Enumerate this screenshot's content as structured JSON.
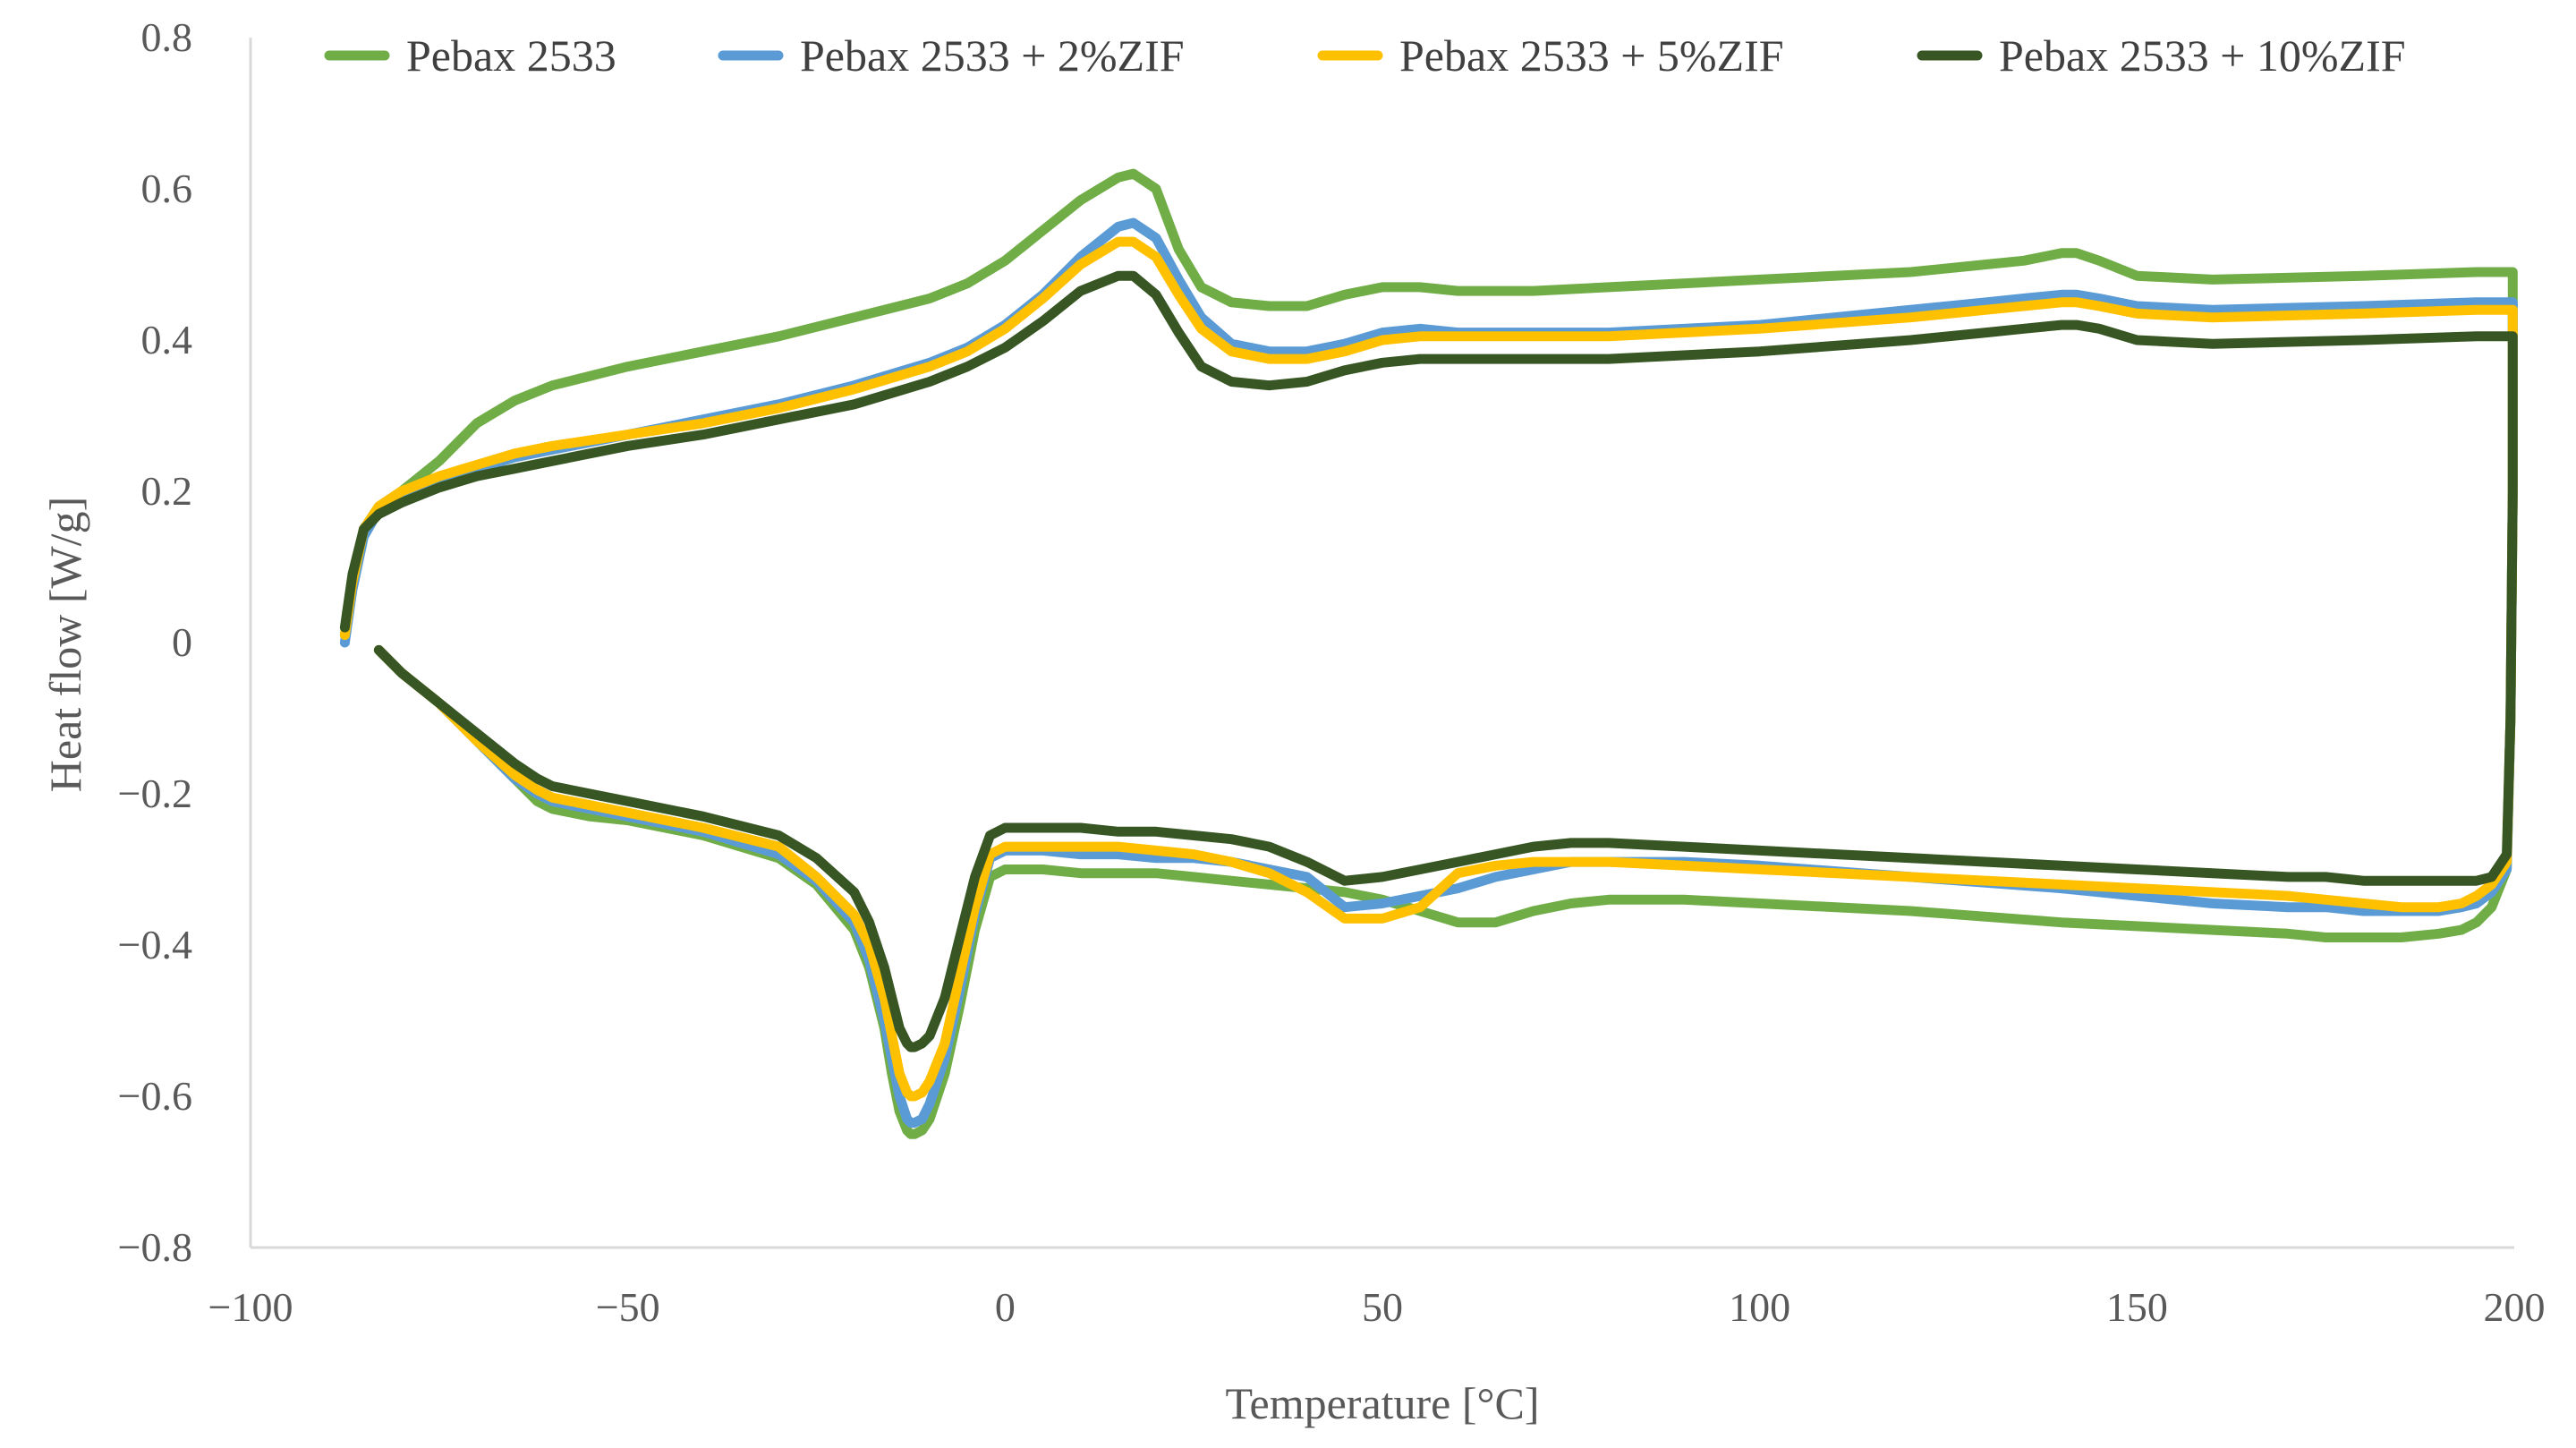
{
  "chart_data": {
    "type": "line",
    "title": "",
    "xlabel": "Temperature [°C]",
    "ylabel": "Heat flow [W/g]",
    "xlim": [
      -100,
      200
    ],
    "ylim": [
      -0.8,
      0.8
    ],
    "x_ticks": [
      -100,
      -50,
      0,
      50,
      100,
      150,
      200
    ],
    "x_tick_labels": [
      "−100",
      "−50",
      "0",
      "50",
      "100",
      "150",
      "200"
    ],
    "y_ticks": [
      0.8,
      0.6,
      0.4,
      0.2,
      0,
      -0.2,
      -0.4,
      -0.6,
      -0.8
    ],
    "y_tick_labels": [
      "0.8",
      "0.6",
      "0.4",
      "0.2",
      "0",
      "−0.2",
      "−0.4",
      "−0.6",
      "−0.8"
    ],
    "grid": false,
    "legend_position": "top",
    "series": [
      {
        "name": "Pebax 2533",
        "color": "#70AD47",
        "x": [
          -87.5,
          -86.5,
          -85,
          -83,
          -80,
          -75,
          -70,
          -65,
          -60,
          -50,
          -40,
          -30,
          -20,
          -10,
          -5,
          0,
          5,
          10,
          15,
          17,
          20,
          23,
          26,
          30,
          35,
          40,
          45,
          50,
          55,
          60,
          70,
          80,
          100,
          120,
          130,
          135,
          140,
          142,
          145,
          150,
          160,
          180,
          195,
          199.8,
          199.8,
          199.5,
          199,
          197,
          195,
          193,
          190,
          185,
          180,
          175,
          170,
          160,
          150,
          140,
          120,
          100,
          90,
          80,
          75,
          70,
          65,
          60,
          55,
          50,
          45,
          40,
          35,
          30,
          25,
          20,
          15,
          10,
          5,
          0,
          -2,
          -4,
          -6,
          -8,
          -10,
          -11,
          -12,
          -12.5,
          -13,
          -14,
          -15,
          -16,
          -18,
          -20,
          -25,
          -30,
          -40,
          -50,
          -55,
          -60,
          -62,
          -65,
          -70,
          -75,
          -80,
          -83
        ],
        "y": [
          0.01,
          0.08,
          0.15,
          0.18,
          0.2,
          0.24,
          0.29,
          0.32,
          0.34,
          0.365,
          0.385,
          0.405,
          0.43,
          0.455,
          0.475,
          0.505,
          0.545,
          0.585,
          0.615,
          0.62,
          0.6,
          0.52,
          0.47,
          0.45,
          0.445,
          0.445,
          0.46,
          0.47,
          0.47,
          0.465,
          0.465,
          0.47,
          0.48,
          0.49,
          0.5,
          0.505,
          0.515,
          0.515,
          0.505,
          0.485,
          0.48,
          0.485,
          0.49,
          0.49,
          0.2,
          -0.1,
          -0.3,
          -0.35,
          -0.37,
          -0.38,
          -0.385,
          -0.39,
          -0.39,
          -0.39,
          -0.385,
          -0.38,
          -0.375,
          -0.37,
          -0.355,
          -0.345,
          -0.34,
          -0.34,
          -0.345,
          -0.355,
          -0.37,
          -0.37,
          -0.355,
          -0.34,
          -0.33,
          -0.325,
          -0.32,
          -0.315,
          -0.31,
          -0.305,
          -0.305,
          -0.305,
          -0.3,
          -0.3,
          -0.31,
          -0.38,
          -0.48,
          -0.57,
          -0.63,
          -0.645,
          -0.65,
          -0.65,
          -0.645,
          -0.62,
          -0.57,
          -0.51,
          -0.43,
          -0.38,
          -0.32,
          -0.285,
          -0.255,
          -0.235,
          -0.23,
          -0.22,
          -0.21,
          -0.18,
          -0.13,
          -0.08,
          -0.04,
          -0.01
        ]
      },
      {
        "name": "Pebax 2533 + 2%ZIF",
        "color": "#5B9BD5",
        "x": [
          -87.5,
          -86.5,
          -85,
          -83,
          -80,
          -75,
          -70,
          -65,
          -60,
          -50,
          -40,
          -30,
          -20,
          -10,
          -5,
          0,
          5,
          10,
          15,
          17,
          20,
          23,
          26,
          30,
          35,
          40,
          45,
          50,
          55,
          60,
          70,
          80,
          100,
          120,
          130,
          135,
          140,
          142,
          145,
          150,
          160,
          180,
          195,
          199.8,
          199.8,
          199.5,
          199,
          197,
          195,
          193,
          190,
          185,
          180,
          175,
          170,
          160,
          150,
          140,
          120,
          100,
          90,
          80,
          75,
          70,
          65,
          60,
          55,
          50,
          45,
          40,
          35,
          30,
          25,
          20,
          15,
          10,
          5,
          0,
          -2,
          -4,
          -6,
          -8,
          -10,
          -11,
          -12,
          -12.5,
          -13,
          -14,
          -15,
          -16,
          -18,
          -20,
          -25,
          -30,
          -40,
          -50,
          -55,
          -60,
          -62,
          -65,
          -70,
          -75,
          -80,
          -83
        ],
        "y": [
          0.0,
          0.07,
          0.14,
          0.175,
          0.195,
          0.215,
          0.23,
          0.245,
          0.255,
          0.275,
          0.295,
          0.315,
          0.34,
          0.37,
          0.39,
          0.42,
          0.46,
          0.51,
          0.55,
          0.555,
          0.535,
          0.48,
          0.43,
          0.395,
          0.385,
          0.385,
          0.395,
          0.41,
          0.415,
          0.41,
          0.41,
          0.41,
          0.42,
          0.44,
          0.45,
          0.455,
          0.46,
          0.46,
          0.455,
          0.445,
          0.44,
          0.445,
          0.45,
          0.45,
          0.2,
          -0.1,
          -0.3,
          -0.33,
          -0.345,
          -0.35,
          -0.355,
          -0.355,
          -0.355,
          -0.35,
          -0.35,
          -0.345,
          -0.335,
          -0.325,
          -0.31,
          -0.295,
          -0.29,
          -0.29,
          -0.29,
          -0.3,
          -0.31,
          -0.325,
          -0.335,
          -0.345,
          -0.35,
          -0.31,
          -0.3,
          -0.29,
          -0.285,
          -0.285,
          -0.28,
          -0.28,
          -0.275,
          -0.275,
          -0.285,
          -0.36,
          -0.46,
          -0.55,
          -0.61,
          -0.63,
          -0.635,
          -0.635,
          -0.63,
          -0.6,
          -0.55,
          -0.5,
          -0.42,
          -0.37,
          -0.315,
          -0.28,
          -0.25,
          -0.23,
          -0.22,
          -0.21,
          -0.2,
          -0.18,
          -0.13,
          -0.08,
          -0.04,
          -0.01
        ]
      },
      {
        "name": "Pebax 2533 + 5%ZIF",
        "color": "#FFC000",
        "x": [
          -87.5,
          -86.5,
          -85,
          -83,
          -80,
          -75,
          -70,
          -65,
          -60,
          -50,
          -40,
          -30,
          -20,
          -10,
          -5,
          0,
          5,
          10,
          15,
          17,
          20,
          23,
          26,
          30,
          35,
          40,
          45,
          50,
          55,
          60,
          70,
          80,
          100,
          120,
          130,
          135,
          140,
          142,
          145,
          150,
          160,
          180,
          195,
          199.8,
          199.8,
          199.5,
          199,
          197,
          195,
          193,
          190,
          185,
          180,
          175,
          170,
          160,
          150,
          140,
          120,
          100,
          90,
          80,
          75,
          70,
          65,
          60,
          55,
          50,
          45,
          40,
          35,
          30,
          25,
          20,
          15,
          10,
          5,
          0,
          -2,
          -4,
          -6,
          -8,
          -10,
          -11,
          -12,
          -12.5,
          -13,
          -14,
          -15,
          -16,
          -18,
          -20,
          -25,
          -30,
          -40,
          -50,
          -55,
          -60,
          -62,
          -65,
          -70,
          -75,
          -80,
          -83
        ],
        "y": [
          0.01,
          0.08,
          0.15,
          0.18,
          0.2,
          0.22,
          0.235,
          0.25,
          0.26,
          0.275,
          0.29,
          0.31,
          0.335,
          0.365,
          0.385,
          0.415,
          0.455,
          0.5,
          0.53,
          0.53,
          0.51,
          0.46,
          0.415,
          0.385,
          0.375,
          0.375,
          0.385,
          0.4,
          0.405,
          0.405,
          0.405,
          0.405,
          0.415,
          0.43,
          0.44,
          0.445,
          0.45,
          0.45,
          0.445,
          0.435,
          0.43,
          0.435,
          0.44,
          0.44,
          0.2,
          -0.1,
          -0.29,
          -0.32,
          -0.335,
          -0.345,
          -0.35,
          -0.35,
          -0.345,
          -0.34,
          -0.335,
          -0.33,
          -0.325,
          -0.32,
          -0.31,
          -0.3,
          -0.295,
          -0.29,
          -0.29,
          -0.29,
          -0.295,
          -0.305,
          -0.35,
          -0.365,
          -0.365,
          -0.33,
          -0.305,
          -0.29,
          -0.28,
          -0.275,
          -0.27,
          -0.27,
          -0.27,
          -0.27,
          -0.28,
          -0.35,
          -0.44,
          -0.53,
          -0.58,
          -0.595,
          -0.6,
          -0.6,
          -0.595,
          -0.57,
          -0.52,
          -0.47,
          -0.4,
          -0.36,
          -0.31,
          -0.27,
          -0.245,
          -0.225,
          -0.215,
          -0.205,
          -0.195,
          -0.175,
          -0.13,
          -0.08,
          -0.04,
          -0.01
        ]
      },
      {
        "name": "Pebax 2533 + 10%ZIF",
        "color": "#375623",
        "x": [
          -87.5,
          -86.5,
          -85,
          -83,
          -80,
          -75,
          -70,
          -65,
          -60,
          -50,
          -40,
          -30,
          -20,
          -10,
          -5,
          0,
          5,
          10,
          15,
          17,
          20,
          23,
          26,
          30,
          35,
          40,
          45,
          50,
          55,
          60,
          70,
          80,
          100,
          120,
          130,
          135,
          140,
          142,
          145,
          150,
          160,
          180,
          195,
          199.8,
          199.8,
          199.5,
          199,
          197,
          195,
          193,
          190,
          185,
          180,
          175,
          170,
          160,
          150,
          140,
          120,
          100,
          90,
          80,
          75,
          70,
          65,
          60,
          55,
          50,
          45,
          40,
          35,
          30,
          25,
          20,
          15,
          10,
          5,
          0,
          -2,
          -4,
          -6,
          -8,
          -10,
          -11,
          -12,
          -12.5,
          -13,
          -14,
          -15,
          -16,
          -18,
          -20,
          -25,
          -30,
          -40,
          -50,
          -55,
          -60,
          -62,
          -65,
          -70,
          -75,
          -80,
          -83
        ],
        "y": [
          0.02,
          0.09,
          0.15,
          0.17,
          0.185,
          0.205,
          0.22,
          0.23,
          0.24,
          0.26,
          0.275,
          0.295,
          0.315,
          0.345,
          0.365,
          0.39,
          0.425,
          0.465,
          0.485,
          0.485,
          0.46,
          0.41,
          0.365,
          0.345,
          0.34,
          0.345,
          0.36,
          0.37,
          0.375,
          0.375,
          0.375,
          0.375,
          0.385,
          0.4,
          0.41,
          0.415,
          0.42,
          0.42,
          0.415,
          0.4,
          0.395,
          0.4,
          0.405,
          0.405,
          0.2,
          -0.1,
          -0.28,
          -0.31,
          -0.315,
          -0.315,
          -0.315,
          -0.315,
          -0.315,
          -0.31,
          -0.31,
          -0.305,
          -0.3,
          -0.295,
          -0.285,
          -0.275,
          -0.27,
          -0.265,
          -0.265,
          -0.27,
          -0.28,
          -0.29,
          -0.3,
          -0.31,
          -0.315,
          -0.29,
          -0.27,
          -0.26,
          -0.255,
          -0.25,
          -0.25,
          -0.245,
          -0.245,
          -0.245,
          -0.255,
          -0.31,
          -0.39,
          -0.47,
          -0.52,
          -0.53,
          -0.535,
          -0.535,
          -0.53,
          -0.51,
          -0.47,
          -0.43,
          -0.37,
          -0.33,
          -0.285,
          -0.255,
          -0.23,
          -0.21,
          -0.2,
          -0.19,
          -0.18,
          -0.16,
          -0.12,
          -0.08,
          -0.04,
          -0.01
        ]
      }
    ]
  }
}
